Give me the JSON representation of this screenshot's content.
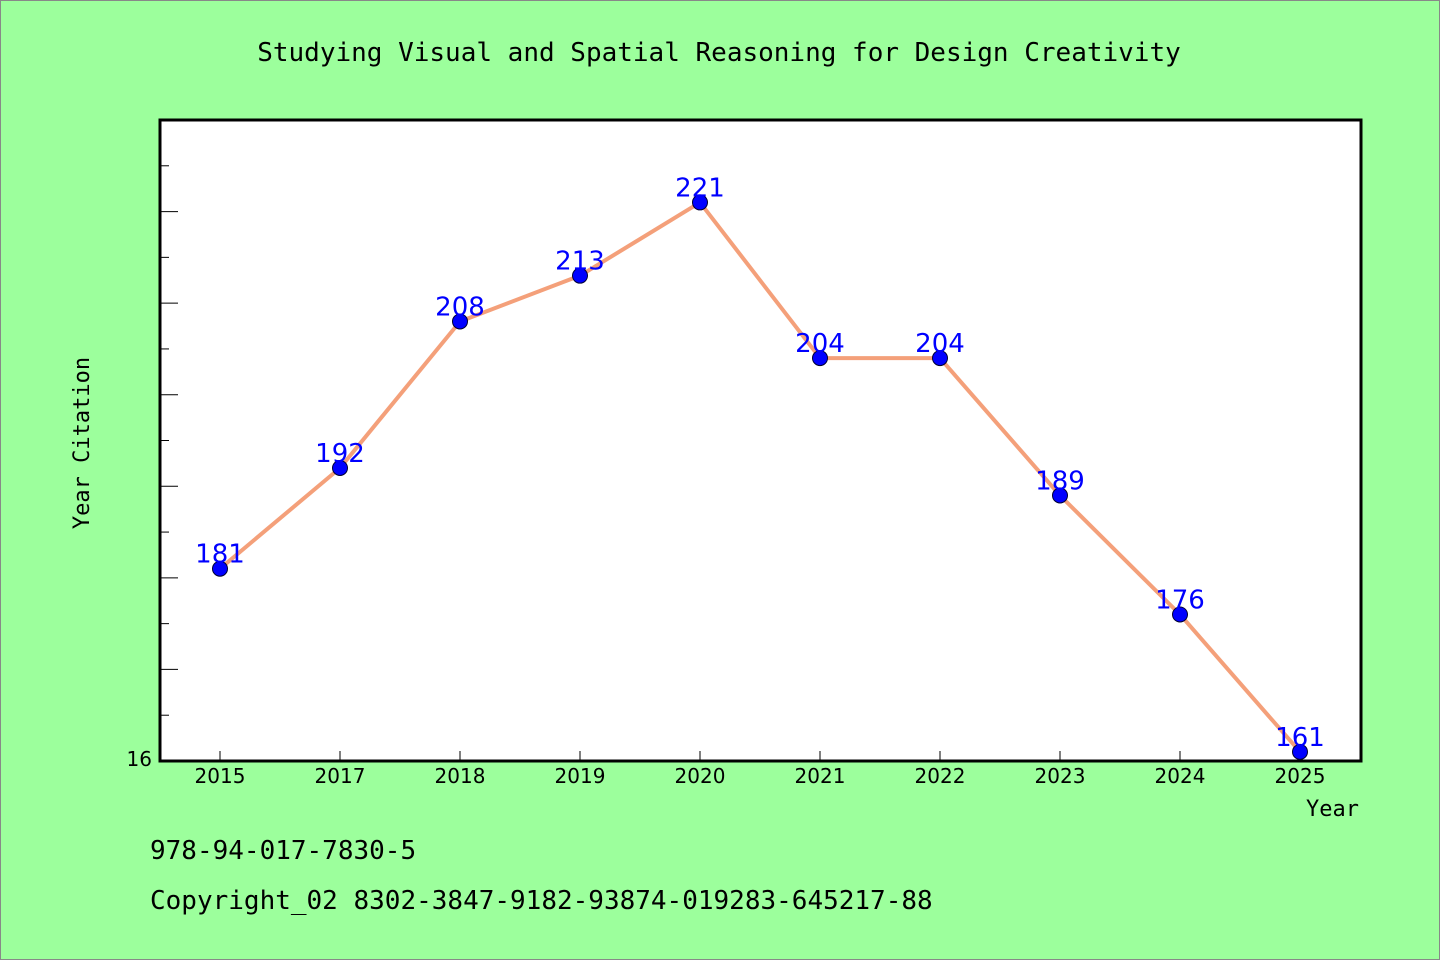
{
  "chart_data": {
    "type": "line",
    "title": "Studying Visual and Spatial Reasoning for Design Creativity",
    "xlabel": "Year",
    "ylabel": "Year Citation",
    "categories": [
      "2015",
      "2017",
      "2018",
      "2019",
      "2020",
      "2021",
      "2022",
      "2023",
      "2024",
      "2025"
    ],
    "series": [
      {
        "values": [
          181,
          192,
          208,
          213,
          221,
          204,
          204,
          189,
          176,
          161
        ]
      }
    ],
    "ylim": [
      160,
      230
    ],
    "y_origin_label": "16",
    "grid": false,
    "colors": {
      "line": "#f4a07a",
      "marker": "#0000ff",
      "data_label": "#0000ff",
      "plot_background": "#ffffff",
      "page_background": "#9cff9c"
    }
  },
  "footer": {
    "isbn": "978-94-017-7830-5",
    "copyright": "Copyright_02 8302-3847-9182-93874-019283-645217-88"
  }
}
